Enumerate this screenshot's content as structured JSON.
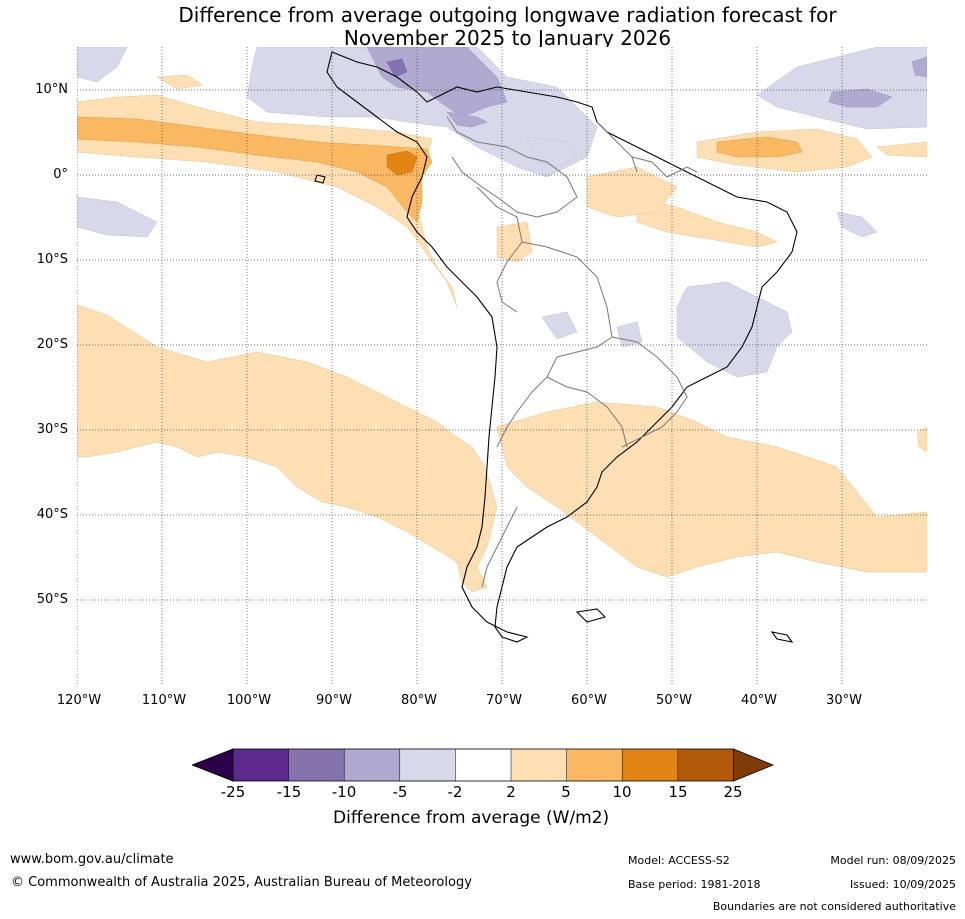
{
  "title_line1": "Difference from average outgoing longwave radiation forecast for",
  "title_line2": "November 2025 to January 2026",
  "lat_labels": [
    "10°N",
    "0°",
    "10°S",
    "20°S",
    "30°S",
    "40°S",
    "50°S"
  ],
  "lon_labels": [
    "120°W",
    "110°W",
    "100°W",
    "90°W",
    "80°W",
    "70°W",
    "60°W",
    "50°W",
    "40°W",
    "30°W"
  ],
  "colorbar": {
    "ticks": [
      "-25",
      "-15",
      "-10",
      "-5",
      "-2",
      "2",
      "5",
      "10",
      "15",
      "25"
    ],
    "colors": [
      "#2d004b",
      "#5b2a8c",
      "#8473ac",
      "#b0aad1",
      "#d8d8ea",
      "#ffffff",
      "#fddfb3",
      "#fbb862",
      "#e28515",
      "#b15a0b",
      "#7f3b08"
    ],
    "label": "Difference from average (W/m2)"
  },
  "footer": {
    "url": "www.bom.gov.au/climate",
    "copyright": "© Commonwealth of Australia 2025, Australian Bureau of Meteorology",
    "model": "Model: ACCESS-S2",
    "base_period": "Base period: 1981-2018",
    "model_run": "Model run: 08/09/2025",
    "issued": "Issued: 10/09/2025",
    "disclaimer": "Boundaries are not considered authoritative"
  }
}
